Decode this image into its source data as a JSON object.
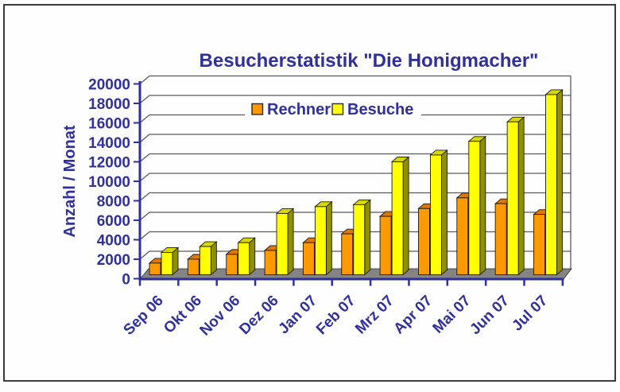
{
  "window": {
    "background": "#fdfdfd",
    "frame_border_color": "#3c3c3c"
  },
  "chart_data": {
    "type": "bar",
    "style": "3d-column",
    "title": "Besucherstatistik \"Die Honigmacher\"",
    "xlabel": "",
    "ylabel": "Anzahl / Monat",
    "categories": [
      "Sep 06",
      "Okt 06",
      "Nov 06",
      "Dez 06",
      "Jan 07",
      "Feb 07",
      "Mrz 07",
      "Apr 07",
      "Mai 07",
      "Jun 07",
      "Jul 07"
    ],
    "series": [
      {
        "name": "Rechner",
        "color": "#FF9900",
        "top_color": "#E07800",
        "side_color": "#B06000",
        "values": [
          1600,
          2000,
          2500,
          2900,
          3700,
          4600,
          6400,
          7200,
          8300,
          7700,
          6600
        ]
      },
      {
        "name": "Besuche",
        "color": "#FFFF00",
        "top_color": "#D8D800",
        "side_color": "#8F8F00",
        "values": [
          2700,
          3300,
          3700,
          6700,
          7400,
          7600,
          12000,
          12700,
          14100,
          16100,
          18900
        ]
      }
    ],
    "ylim": [
      0,
      20000
    ],
    "ytick_step": 2000,
    "yticks": [
      0,
      2000,
      4000,
      6000,
      8000,
      10000,
      12000,
      14000,
      16000,
      18000,
      20000
    ],
    "grid": true,
    "legend_position": "top-center",
    "text_color": "#30309B",
    "axis_color": "#30309B",
    "gridline_color": "#5a5a5a",
    "floor_color": "#848484",
    "bar_outline_color": "#1a1a1a",
    "legend_background": "#ffffff"
  }
}
